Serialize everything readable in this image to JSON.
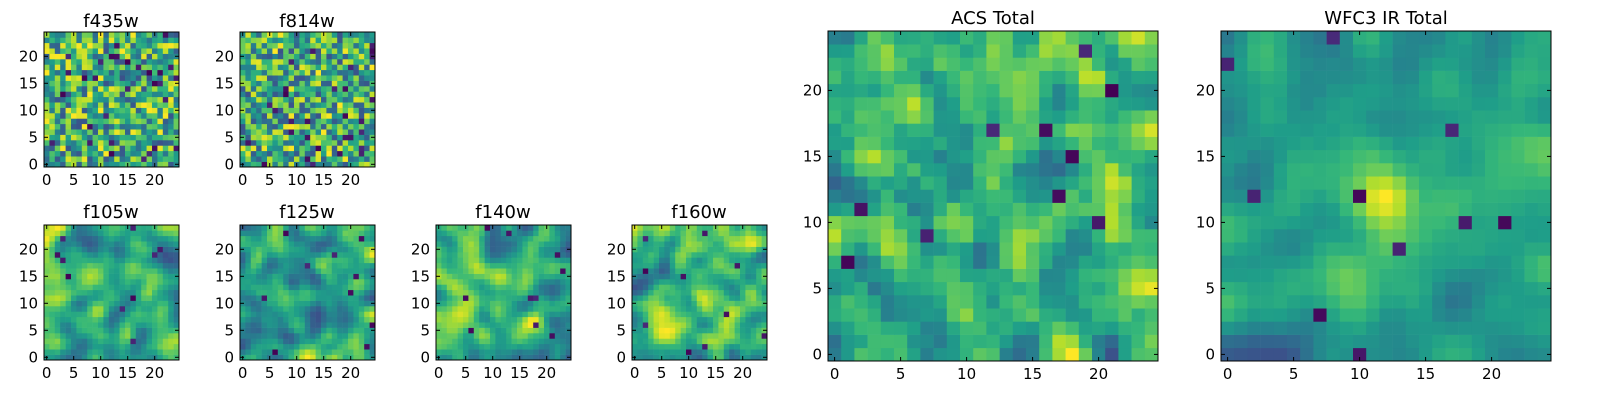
{
  "chart_data": [
    {
      "type": "heatmap",
      "title": "f435w",
      "grid": [
        25,
        25
      ],
      "x_ticks": [
        0,
        5,
        10,
        15,
        20
      ],
      "y_ticks": [
        0,
        5,
        10,
        15,
        20
      ],
      "xlim": [
        0,
        24
      ],
      "ylim": [
        0,
        24
      ],
      "colormap": "viridis",
      "seed": 11,
      "style": "noisy"
    },
    {
      "type": "heatmap",
      "title": "f814w",
      "grid": [
        25,
        25
      ],
      "x_ticks": [
        0,
        5,
        10,
        15,
        20
      ],
      "y_ticks": [
        0,
        5,
        10,
        15,
        20
      ],
      "xlim": [
        0,
        24
      ],
      "ylim": [
        0,
        24
      ],
      "colormap": "viridis",
      "seed": 23,
      "style": "noisy"
    },
    {
      "type": "heatmap",
      "title": "f105w",
      "grid": [
        25,
        25
      ],
      "x_ticks": [
        0,
        5,
        10,
        15,
        20
      ],
      "y_ticks": [
        0,
        5,
        10,
        15,
        20
      ],
      "xlim": [
        0,
        24
      ],
      "ylim": [
        0,
        24
      ],
      "colormap": "viridis",
      "seed": 37,
      "style": "smooth"
    },
    {
      "type": "heatmap",
      "title": "f125w",
      "grid": [
        25,
        25
      ],
      "x_ticks": [
        0,
        5,
        10,
        15,
        20
      ],
      "y_ticks": [
        0,
        5,
        10,
        15,
        20
      ],
      "xlim": [
        0,
        24
      ],
      "ylim": [
        0,
        24
      ],
      "colormap": "viridis",
      "seed": 41,
      "style": "smooth"
    },
    {
      "type": "heatmap",
      "title": "f140w",
      "grid": [
        25,
        25
      ],
      "x_ticks": [
        0,
        5,
        10,
        15,
        20
      ],
      "y_ticks": [
        0,
        5,
        10,
        15,
        20
      ],
      "xlim": [
        0,
        24
      ],
      "ylim": [
        0,
        24
      ],
      "colormap": "viridis",
      "seed": 53,
      "style": "smooth"
    },
    {
      "type": "heatmap",
      "title": "f160w",
      "grid": [
        25,
        25
      ],
      "x_ticks": [
        0,
        5,
        10,
        15,
        20
      ],
      "y_ticks": [
        0,
        5,
        10,
        15,
        20
      ],
      "xlim": [
        0,
        24
      ],
      "ylim": [
        0,
        24
      ],
      "colormap": "viridis",
      "seed": 67,
      "style": "smooth"
    },
    {
      "type": "heatmap",
      "title": "ACS Total",
      "grid": [
        25,
        25
      ],
      "x_ticks": [
        0,
        5,
        10,
        15,
        20
      ],
      "y_ticks": [
        0,
        5,
        10,
        15,
        20
      ],
      "xlim": [
        0,
        24
      ],
      "ylim": [
        0,
        24
      ],
      "colormap": "viridis",
      "seed": 79,
      "style": "medium"
    },
    {
      "type": "heatmap",
      "title": "WFC3 IR Total",
      "grid": [
        25,
        25
      ],
      "x_ticks": [
        0,
        5,
        10,
        15,
        20
      ],
      "y_ticks": [
        0,
        5,
        10,
        15,
        20
      ],
      "xlim": [
        0,
        24
      ],
      "ylim": [
        0,
        24
      ],
      "colormap": "viridis",
      "seed": 97,
      "style": "centered"
    }
  ]
}
